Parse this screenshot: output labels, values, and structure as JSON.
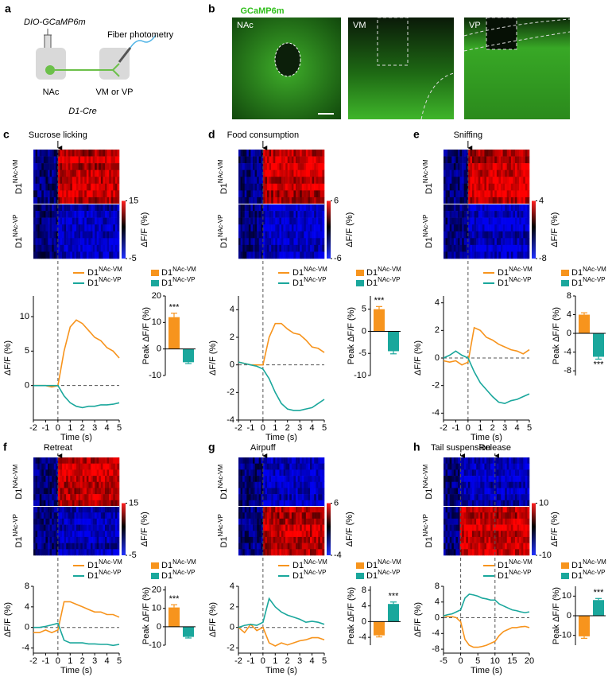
{
  "schematic": {
    "label": "a",
    "virus": "DIO-GCaMP6m",
    "fiber": "Fiber photometry",
    "source": "NAc",
    "target": "VM or VP",
    "mouse": "D1-Cre"
  },
  "histology": {
    "label": "b",
    "title": "GCaMP6m",
    "regions": [
      "NAc",
      "VM",
      "VP"
    ]
  },
  "chart_data": [
    {
      "label": "c",
      "type": "photometry",
      "events": [
        {
          "label": "Sucrose licking",
          "x": 0
        }
      ],
      "colorbar": {
        "label": "ΔF/F (%)",
        "clim": [
          -5,
          15
        ],
        "ticks": [
          15,
          -5
        ]
      },
      "xlabel": "Time (s)",
      "ylabel": "ΔF/F (%)",
      "x": [
        -2,
        -1.5,
        -1,
        -0.5,
        0,
        0.5,
        1,
        1.5,
        2,
        2.5,
        3,
        3.5,
        4,
        4.5,
        5
      ],
      "xlim": [
        -2,
        5
      ],
      "xticks": [
        -2,
        -1,
        0,
        1,
        2,
        3,
        4,
        5
      ],
      "ylim": [
        -5,
        13
      ],
      "yticks": [
        0,
        5,
        10
      ],
      "series": [
        {
          "name": "D1",
          "name_sup": "NAc-VM",
          "color": "#f7941d",
          "values": [
            0,
            0,
            0,
            -0.2,
            0,
            5,
            8.5,
            9.5,
            9,
            8,
            7,
            6.5,
            5.5,
            5,
            4
          ],
          "bar": 12,
          "error": 1.5,
          "annotation": "***"
        },
        {
          "name": "D1",
          "name_sup": "NAc-VP",
          "color": "#1aa79c",
          "values": [
            0,
            0,
            0,
            0,
            0,
            -1.5,
            -2.5,
            -3,
            -3.2,
            -3,
            -3,
            -2.8,
            -2.8,
            -2.7,
            -2.5
          ],
          "bar": -5,
          "error": 0.5
        }
      ],
      "bar_ylabel": "Peak ΔF/F (%)",
      "bar_ylim": [
        -10,
        20
      ],
      "bar_yticks": [
        -10,
        0,
        10,
        20
      ]
    },
    {
      "label": "d",
      "type": "photometry",
      "events": [
        {
          "label": "Food consumption",
          "x": 0
        }
      ],
      "colorbar": {
        "label": "ΔF/F (%)",
        "clim": [
          -6,
          6
        ],
        "ticks": [
          6,
          -6
        ]
      },
      "xlabel": "Time (s)",
      "ylabel": "ΔF/F (%)",
      "x": [
        -2,
        -1.5,
        -1,
        -0.5,
        0,
        0.5,
        1,
        1.5,
        2,
        2.5,
        3,
        3.5,
        4,
        4.5,
        5
      ],
      "xlim": [
        -2,
        5
      ],
      "xticks": [
        -2,
        -1,
        0,
        1,
        2,
        3,
        4,
        5
      ],
      "ylim": [
        -4,
        5
      ],
      "yticks": [
        -4,
        -2,
        0,
        2,
        4
      ],
      "series": [
        {
          "name": "D1",
          "name_sup": "NAc-VM",
          "color": "#f7941d",
          "values": [
            0.2,
            0.1,
            0,
            0,
            0,
            2,
            3,
            3,
            2.6,
            2.3,
            2.2,
            1.8,
            1.3,
            1.2,
            0.9
          ],
          "bar": 5,
          "error": 0.6,
          "annotation": "***"
        },
        {
          "name": "D1",
          "name_sup": "NAc-VP",
          "color": "#1aa79c",
          "values": [
            0.2,
            0.1,
            0,
            -0.1,
            -0.3,
            -1,
            -2,
            -2.8,
            -3.2,
            -3.3,
            -3.3,
            -3.2,
            -3.1,
            -2.8,
            -2.5
          ],
          "bar": -4.5,
          "error": 0.6
        }
      ],
      "bar_ylabel": "Peak ΔF/F (%)",
      "bar_ylim": [
        -10,
        8
      ],
      "bar_yticks": [
        -10,
        -5,
        0,
        5
      ]
    },
    {
      "label": "e",
      "type": "photometry",
      "events": [
        {
          "label": "Sniffing",
          "x": 0
        }
      ],
      "colorbar": {
        "label": "ΔF/F (%)",
        "clim": [
          -8,
          4
        ],
        "ticks": [
          4,
          -8
        ]
      },
      "xlabel": "Time (s)",
      "ylabel": "ΔF/F (%)",
      "x": [
        -2,
        -1.5,
        -1,
        -0.5,
        0,
        0.5,
        1,
        1.5,
        2,
        2.5,
        3,
        3.5,
        4,
        4.5,
        5
      ],
      "xlim": [
        -2,
        5
      ],
      "xticks": [
        -2,
        -1,
        0,
        1,
        2,
        3,
        4,
        5
      ],
      "ylim": [
        -4.5,
        4.5
      ],
      "yticks": [
        -4,
        -2,
        0,
        2,
        4
      ],
      "series": [
        {
          "name": "D1",
          "name_sup": "NAc-VM",
          "color": "#f7941d",
          "values": [
            -0.2,
            -0.3,
            -0.2,
            -0.5,
            -0.3,
            2.2,
            2,
            1.5,
            1.3,
            1,
            0.8,
            0.6,
            0.5,
            0.3,
            0.6
          ],
          "bar": 4,
          "error": 0.4
        },
        {
          "name": "D1",
          "name_sup": "NAc-VP",
          "color": "#1aa79c",
          "values": [
            0,
            0.2,
            0.5,
            0.2,
            0,
            -1,
            -1.8,
            -2.3,
            -2.8,
            -3.2,
            -3.3,
            -3.1,
            -3,
            -2.8,
            -2.6
          ],
          "bar": -5,
          "error": 0.5,
          "annotation": "***"
        }
      ],
      "bar_ylabel": "Peak ΔF/F (%)",
      "bar_ylim": [
        -9,
        8
      ],
      "bar_yticks": [
        -8,
        -4,
        0,
        4,
        8
      ]
    },
    {
      "label": "f",
      "type": "photometry",
      "events": [
        {
          "label": "Retreat",
          "x": 0
        }
      ],
      "colorbar": {
        "label": "ΔF/F (%)",
        "clim": [
          -5,
          15
        ],
        "ticks": [
          15,
          -5
        ]
      },
      "xlabel": "Time (s)",
      "ylabel": "ΔF/F (%)",
      "x": [
        -2,
        -1.5,
        -1,
        -0.5,
        0,
        0.5,
        1,
        1.5,
        2,
        2.5,
        3,
        3.5,
        4,
        4.5,
        5
      ],
      "xlim": [
        -2,
        5
      ],
      "xticks": [
        -2,
        -1,
        0,
        1,
        2,
        3,
        4,
        5
      ],
      "ylim": [
        -5,
        8
      ],
      "yticks": [
        -4,
        0,
        4,
        8
      ],
      "series": [
        {
          "name": "D1",
          "name_sup": "NAc-VM",
          "color": "#f7941d",
          "values": [
            -1,
            -1,
            -0.5,
            -1,
            -0.5,
            5,
            5,
            4.5,
            4,
            3.5,
            3,
            3,
            2.5,
            2.5,
            2
          ],
          "bar": 10.5,
          "error": 1.5,
          "annotation": "***"
        },
        {
          "name": "D1",
          "name_sup": "NAc-VP",
          "color": "#1aa79c",
          "values": [
            0,
            0,
            0.2,
            0.5,
            0.8,
            -2.5,
            -3,
            -3,
            -3,
            -3.2,
            -3.2,
            -3.3,
            -3.3,
            -3.5,
            -3.3
          ],
          "bar": -5.5,
          "error": 0.6
        }
      ],
      "bar_ylabel": "Peak ΔF/F (%)",
      "bar_ylim": [
        -10,
        22
      ],
      "bar_yticks": [
        -10,
        0,
        10,
        20
      ]
    },
    {
      "label": "g",
      "type": "photometry",
      "events": [
        {
          "label": "Airpuff",
          "x": 0
        }
      ],
      "colorbar": {
        "label": "ΔF/F (%)",
        "clim": [
          -4,
          6
        ],
        "ticks": [
          6,
          -4
        ]
      },
      "xlabel": "Time (s)",
      "ylabel": "ΔF/F (%)",
      "x": [
        -2,
        -1.5,
        -1,
        -0.5,
        0,
        0.5,
        1,
        1.5,
        2,
        2.5,
        3,
        3.5,
        4,
        4.5,
        5
      ],
      "xlim": [
        -2,
        5
      ],
      "xticks": [
        -2,
        -1,
        0,
        1,
        2,
        3,
        4,
        5
      ],
      "ylim": [
        -2.5,
        4
      ],
      "yticks": [
        -2,
        0,
        2,
        4
      ],
      "series": [
        {
          "name": "D1",
          "name_sup": "NAc-VM",
          "color": "#f7941d",
          "values": [
            0,
            -0.5,
            0.3,
            -0.3,
            0,
            -1.5,
            -1.8,
            -1.5,
            -1.7,
            -1.5,
            -1.3,
            -1.2,
            -1,
            -1,
            -1.2
          ],
          "bar": -3.5,
          "error": 0.4
        },
        {
          "name": "D1",
          "name_sup": "NAc-VP",
          "color": "#1aa79c",
          "values": [
            0,
            0.2,
            0.3,
            0.2,
            0.5,
            2.8,
            2,
            1.5,
            1.2,
            1,
            0.8,
            0.5,
            0.6,
            0.5,
            0.3
          ],
          "bar": 4.5,
          "error": 0.5,
          "annotation": "***"
        }
      ],
      "bar_ylabel": "Peak ΔF/F (%)",
      "bar_ylim": [
        -6,
        9
      ],
      "bar_yticks": [
        -4,
        0,
        4,
        8
      ]
    },
    {
      "label": "h",
      "type": "photometry",
      "events": [
        {
          "label": "Tail suspension",
          "x": 0
        },
        {
          "label": "Release",
          "x": 10
        }
      ],
      "colorbar": {
        "label": "ΔF/F (%)",
        "clim": [
          -10,
          10
        ],
        "ticks": [
          10,
          -10
        ]
      },
      "xlabel": "Time (s)",
      "ylabel": "ΔF/F (%)",
      "x": [
        -5,
        -3.75,
        -2.5,
        -1.25,
        0,
        1.25,
        2.5,
        3.75,
        5,
        6.25,
        7.5,
        8.75,
        10,
        11.25,
        12.5,
        13.75,
        15,
        16.25,
        17.5,
        18.75,
        20
      ],
      "xlim": [
        -5,
        20
      ],
      "xticks": [
        -5,
        0,
        5,
        10,
        15,
        20
      ],
      "ylim": [
        -9,
        8
      ],
      "yticks": [
        -8,
        -4,
        0,
        4,
        8
      ],
      "series": [
        {
          "name": "D1",
          "name_sup": "NAc-VM",
          "color": "#f7941d",
          "values": [
            0.5,
            0.3,
            0.3,
            0,
            -1,
            -5.5,
            -7,
            -7.5,
            -7.5,
            -7.3,
            -7,
            -6.5,
            -6,
            -4.5,
            -3.5,
            -3,
            -2.5,
            -2.5,
            -2.3,
            -2.2,
            -2.5
          ],
          "bar": -10.5,
          "error": 1
        },
        {
          "name": "D1",
          "name_sup": "NAc-VP",
          "color": "#1aa79c",
          "values": [
            0.5,
            0.8,
            1,
            1.5,
            2,
            5,
            6,
            5.8,
            5.5,
            5,
            4.8,
            4.5,
            4.5,
            3.5,
            3,
            2.5,
            2,
            1.8,
            1.5,
            1.3,
            1.5
          ],
          "bar": 8,
          "error": 0.8,
          "annotation": "***"
        }
      ],
      "bar_ylabel": "Peak ΔF/F (%)",
      "bar_ylim": [
        -15,
        15
      ],
      "bar_yticks": [
        -10,
        0,
        10
      ]
    }
  ]
}
